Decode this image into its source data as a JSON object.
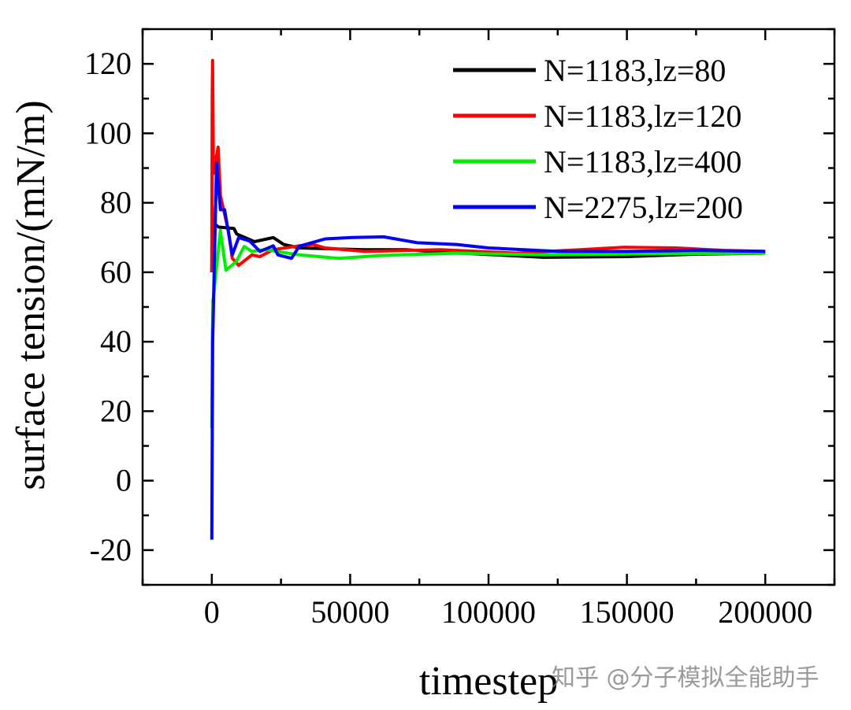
{
  "chart_data": {
    "type": "line",
    "title": "",
    "xlabel": "timestep",
    "ylabel": "surface tension/(mN/m)",
    "xlim": [
      -25000,
      225000
    ],
    "ylim": [
      -30,
      130
    ],
    "xticks": [
      0,
      50000,
      100000,
      150000,
      200000
    ],
    "xtick_labels": [
      "0",
      "50000",
      "100000",
      "150000",
      "200000"
    ],
    "yticks": [
      -20,
      0,
      20,
      40,
      60,
      80,
      100,
      120
    ],
    "ytick_labels": [
      "-20",
      "0",
      "20",
      "40",
      "60",
      "80",
      "100",
      "120"
    ],
    "grid": false,
    "legend_position": "top-right",
    "series": [
      {
        "name": "N=1183,lz=80",
        "color": "#000000",
        "points": [
          [
            0,
            60
          ],
          [
            100,
            79
          ],
          [
            300,
            62
          ],
          [
            700,
            74
          ],
          [
            2500,
            73
          ],
          [
            8000,
            72.6
          ],
          [
            9000,
            71
          ],
          [
            15400,
            68.8
          ],
          [
            22200,
            70
          ],
          [
            26000,
            68
          ],
          [
            31600,
            67
          ],
          [
            55000,
            66.5
          ],
          [
            70000,
            66.5
          ],
          [
            90000,
            65.5
          ],
          [
            120000,
            64.3
          ],
          [
            150000,
            64.5
          ],
          [
            175000,
            65.2
          ],
          [
            200000,
            65.5
          ]
        ]
      },
      {
        "name": "N=1183,lz=120",
        "color": "#ff0000",
        "points": [
          [
            0,
            60
          ],
          [
            150,
            110
          ],
          [
            285,
            121
          ],
          [
            600,
            88.5
          ],
          [
            2280,
            96
          ],
          [
            3130,
            82
          ],
          [
            5980,
            72
          ],
          [
            7400,
            64
          ],
          [
            9700,
            62
          ],
          [
            14500,
            65
          ],
          [
            17400,
            64.5
          ],
          [
            22200,
            66.5
          ],
          [
            31600,
            67.6
          ],
          [
            36500,
            68
          ],
          [
            41000,
            67
          ],
          [
            55300,
            66
          ],
          [
            82600,
            66.5
          ],
          [
            110000,
            65.5
          ],
          [
            149000,
            67.2
          ],
          [
            168000,
            67
          ],
          [
            185000,
            66.3
          ],
          [
            200000,
            66
          ]
        ]
      },
      {
        "name": "N=1183,lz=400",
        "color": "#00ee00",
        "points": [
          [
            0,
            15
          ],
          [
            200,
            40
          ],
          [
            400,
            51.5
          ],
          [
            3100,
            72
          ],
          [
            5100,
            60.6
          ],
          [
            8800,
            63
          ],
          [
            11700,
            67.4
          ],
          [
            14500,
            66
          ],
          [
            19400,
            66.5
          ],
          [
            31600,
            65
          ],
          [
            45900,
            64
          ],
          [
            60000,
            64.8
          ],
          [
            88000,
            65.5
          ],
          [
            120000,
            65
          ],
          [
            160000,
            65.3
          ],
          [
            200000,
            65.5
          ]
        ]
      },
      {
        "name": "N=2275,lz=200",
        "color": "#0000ff",
        "points": [
          [
            0,
            -17
          ],
          [
            300,
            40
          ],
          [
            1700,
            91.4
          ],
          [
            3100,
            78
          ],
          [
            4600,
            78
          ],
          [
            7400,
            65
          ],
          [
            9700,
            70
          ],
          [
            13700,
            69
          ],
          [
            17400,
            66
          ],
          [
            22200,
            67.6
          ],
          [
            23900,
            65
          ],
          [
            28800,
            64
          ],
          [
            31600,
            67.5
          ],
          [
            41000,
            69.6
          ],
          [
            50700,
            70
          ],
          [
            62100,
            70.2
          ],
          [
            74300,
            68.5
          ],
          [
            88500,
            68
          ],
          [
            100000,
            67
          ],
          [
            125000,
            66
          ],
          [
            150000,
            66
          ],
          [
            175000,
            66.3
          ],
          [
            200000,
            66
          ]
        ]
      }
    ]
  },
  "watermark": "知乎 @分子模拟全能助手"
}
